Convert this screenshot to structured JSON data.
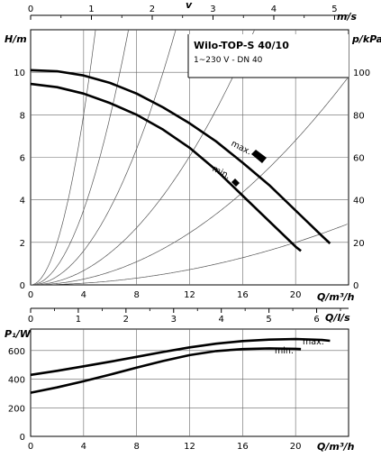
{
  "chart_data": [
    {
      "type": "line",
      "title": "Wilo-TOP-S 40/10",
      "subtitle": "1~230 V - DN 40",
      "xlabel": "Q/m³/h",
      "ylabel": "H/m",
      "y2label": "p/kPa",
      "x2label": "v",
      "x2unit": "m/s",
      "xlim": [
        0,
        24
      ],
      "ylim": [
        0,
        12
      ],
      "y2lim": [
        0,
        120
      ],
      "x2lim": [
        0,
        5.23
      ],
      "x_ticks": [
        0,
        4,
        8,
        12,
        16,
        20
      ],
      "y_ticks": [
        0,
        2,
        4,
        6,
        8,
        10
      ],
      "y2_ticks": [
        0,
        20,
        40,
        60,
        80,
        100
      ],
      "x2_ticks": [
        0,
        1,
        2,
        3,
        4,
        5
      ],
      "grid": true,
      "series": [
        {
          "name": "max.",
          "x": [
            0,
            2,
            4,
            6,
            8,
            10,
            12,
            14,
            16,
            18,
            20,
            22,
            22.6
          ],
          "y": [
            10.1,
            10.05,
            9.85,
            9.5,
            9.0,
            8.35,
            7.6,
            6.75,
            5.75,
            4.7,
            3.5,
            2.3,
            1.95
          ]
        },
        {
          "name": "min.",
          "x": [
            0,
            2,
            4,
            6,
            8,
            10,
            12,
            14,
            16,
            18,
            20,
            20.4
          ],
          "y": [
            9.45,
            9.3,
            9.0,
            8.55,
            8.0,
            7.3,
            6.45,
            5.4,
            4.2,
            3.0,
            1.8,
            1.6
          ]
        }
      ],
      "system_curves_k": [
        0.5,
        0.22,
        0.1,
        0.042,
        0.017,
        0.005
      ],
      "curve_labels": [
        "max.",
        "min."
      ]
    },
    {
      "type": "line",
      "xlabel": "Q/m³/h",
      "ylabel": "P₁/W",
      "x2label": "Q/l/s",
      "xlim": [
        0,
        24
      ],
      "ylim": [
        0,
        750
      ],
      "x2lim": [
        0,
        6.67
      ],
      "x_ticks": [
        0,
        4,
        8,
        12,
        16,
        20
      ],
      "y_ticks": [
        0,
        200,
        400,
        600
      ],
      "x2_ticks": [
        0,
        1,
        2,
        3,
        4,
        5,
        6
      ],
      "grid": true,
      "series": [
        {
          "name": "max.",
          "x": [
            0,
            2,
            4,
            6,
            8,
            10,
            12,
            14,
            16,
            18,
            20,
            22,
            22.6
          ],
          "y": [
            430,
            458,
            490,
            522,
            556,
            590,
            622,
            648,
            666,
            676,
            680,
            674,
            668
          ]
        },
        {
          "name": "min.",
          "x": [
            0,
            2,
            4,
            6,
            8,
            10,
            12,
            14,
            16,
            18,
            20,
            20.4
          ],
          "y": [
            305,
            342,
            385,
            432,
            480,
            527,
            568,
            596,
            610,
            615,
            612,
            610
          ]
        }
      ],
      "curve_labels": [
        "max.",
        "min."
      ]
    }
  ]
}
